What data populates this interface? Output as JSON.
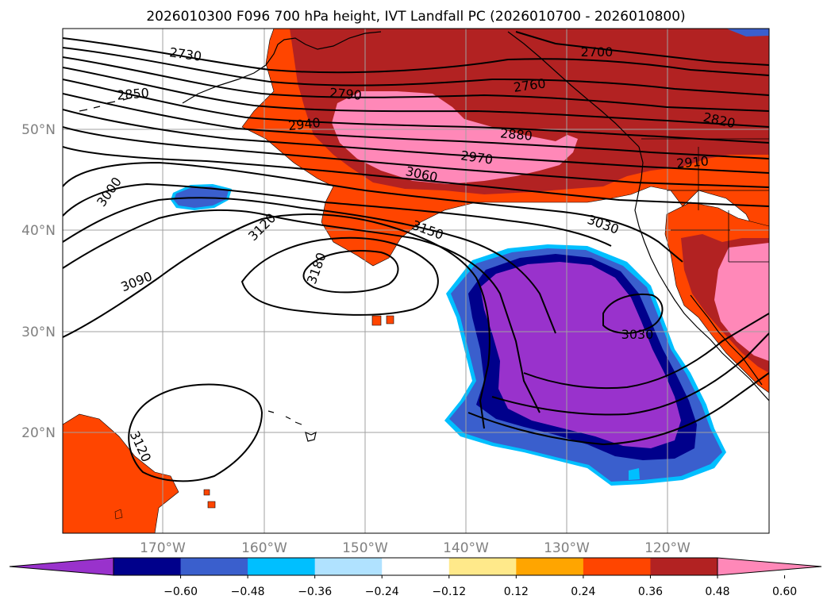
{
  "title": "2026010300 F096 700 hPa height, IVT Landfall PC (2026010700 - 2026010800)",
  "lat_labels": [
    "50°N",
    "40°N",
    "30°N",
    "20°N"
  ],
  "lon_labels": [
    "170°W",
    "160°W",
    "150°W",
    "140°W",
    "130°W",
    "120°W"
  ],
  "contour_labels": [
    "2730",
    "2850",
    "3000",
    "3090",
    "2790",
    "2940",
    "3120",
    "3180",
    "3150",
    "3060",
    "2970",
    "2880",
    "2760",
    "2700",
    "2820",
    "2910",
    "3030",
    "3030",
    "3120"
  ],
  "colorbar": {
    "ticks": [
      "−0.60",
      "−0.48",
      "−0.36",
      "−0.24",
      "−0.12",
      "0.12",
      "0.24",
      "0.36",
      "0.48",
      "0.60"
    ],
    "colors": [
      "#9932cc",
      "#00008b",
      "#3a5fcd",
      "#00bfff",
      "#b0e2ff",
      "#ffffff",
      "#ffe98a",
      "#ffa500",
      "#ff4500",
      "#b22222",
      "#ff88b8"
    ]
  },
  "fill_colors": {
    "orange_red": "#ff4500",
    "dark_red": "#b22222",
    "pink": "#ff88b8",
    "purple": "#9932cc",
    "navy": "#00008b",
    "blue": "#3a5fcd",
    "cyan": "#00bfff"
  }
}
